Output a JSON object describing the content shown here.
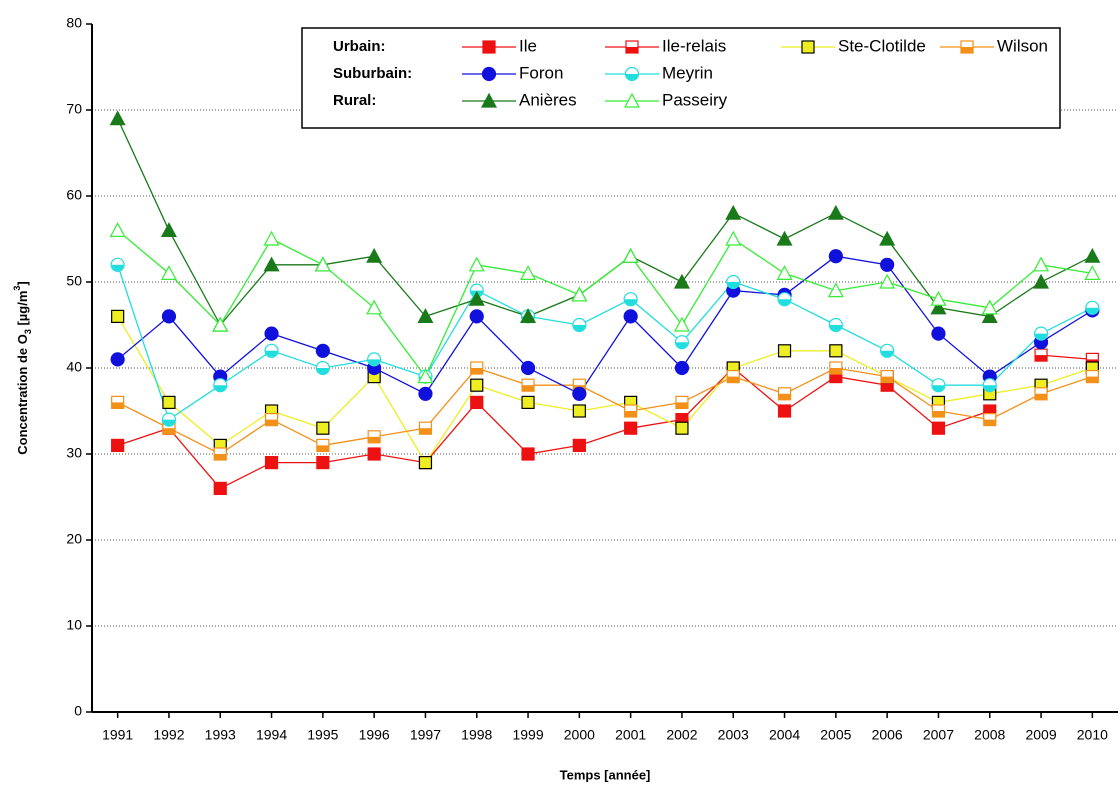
{
  "chart_data": {
    "type": "line",
    "x": [
      1991,
      1992,
      1993,
      1994,
      1995,
      1996,
      1997,
      1998,
      1999,
      2000,
      2001,
      2002,
      2003,
      2004,
      2005,
      2006,
      2007,
      2008,
      2009,
      2010
    ],
    "xlim": [
      1990.5,
      2010.5
    ],
    "xticks": [
      1991,
      1992,
      1993,
      1994,
      1995,
      1996,
      1997,
      1998,
      1999,
      2000,
      2001,
      2002,
      2003,
      2004,
      2005,
      2006,
      2007,
      2008,
      2009,
      2010
    ],
    "ylim": [
      0,
      80
    ],
    "yticks": [
      0,
      10,
      20,
      30,
      40,
      50,
      60,
      70,
      80
    ],
    "grid": true,
    "xlabel": "Temps [année]",
    "ylabel_parts": [
      "Concentration de O",
      "3",
      "  [µg/m",
      "3",
      "]"
    ],
    "legend_groups": [
      "Urbain:",
      "Suburbain:",
      "Rural:"
    ],
    "series": [
      {
        "name": "Ile",
        "color": "#ee1111",
        "marker_color": "#ee1111",
        "marker": "square",
        "fill": "full",
        "values": [
          31,
          33,
          26,
          29,
          29,
          30,
          29,
          36,
          30,
          31,
          33,
          34,
          40,
          35,
          39,
          38,
          33,
          35,
          null,
          null
        ]
      },
      {
        "name": "Ile-relais",
        "color": "#ee1111",
        "marker_color": "#ee1111",
        "marker": "square",
        "fill": "half",
        "values": [
          null,
          null,
          null,
          null,
          null,
          null,
          null,
          null,
          null,
          null,
          null,
          null,
          null,
          null,
          null,
          null,
          null,
          null,
          41.5,
          41
        ]
      },
      {
        "name": "Ste-Clotilde",
        "color": "#eeee22",
        "marker_color": "#eeee22",
        "marker": "square",
        "fill": "full",
        "edge": "#000000",
        "values": [
          46,
          36,
          31,
          35,
          33,
          39,
          29,
          38,
          36,
          35,
          36,
          33,
          40,
          42,
          42,
          39,
          36,
          37,
          38,
          40
        ]
      },
      {
        "name": "Wilson",
        "color": "#f39019",
        "marker_color": "#f39019",
        "marker": "square",
        "fill": "half",
        "values": [
          36,
          33,
          30,
          34,
          31,
          32,
          33,
          40,
          38,
          38,
          35,
          36,
          39,
          37,
          40,
          39,
          35,
          34,
          37,
          39
        ]
      },
      {
        "name": "Foron",
        "color": "#1111dd",
        "marker_color": "#1111dd",
        "marker": "circle",
        "fill": "full",
        "values": [
          41,
          46,
          39,
          44,
          42,
          40,
          37,
          46,
          40,
          37,
          46,
          40,
          49,
          48.5,
          53,
          52,
          44,
          39,
          43,
          46.7
        ]
      },
      {
        "name": "Meyrin",
        "color": "#22dddd",
        "marker_color": "#22dddd",
        "marker": "circle",
        "fill": "half",
        "values": [
          52,
          34,
          38,
          42,
          40,
          41,
          39,
          49,
          46,
          45,
          48,
          43,
          50,
          48,
          45,
          42,
          38,
          38,
          44,
          47
        ]
      },
      {
        "name": "Anières",
        "color": "#1a7a1a",
        "marker_color": "#1a7a1a",
        "marker": "triangle",
        "fill": "full",
        "values": [
          69,
          56,
          45,
          52,
          52,
          53,
          46,
          48,
          46,
          48.5,
          53,
          50,
          58,
          55,
          58,
          55,
          47,
          46,
          50,
          53
        ]
      },
      {
        "name": "Passeiry",
        "color": "#33ee33",
        "marker_color": "#33ee33",
        "marker": "triangle",
        "fill": "none",
        "values": [
          56,
          51,
          45,
          55,
          52,
          47,
          39,
          52,
          51,
          48.5,
          53,
          45,
          55,
          51,
          49,
          50,
          48,
          47,
          52,
          51
        ]
      }
    ]
  }
}
